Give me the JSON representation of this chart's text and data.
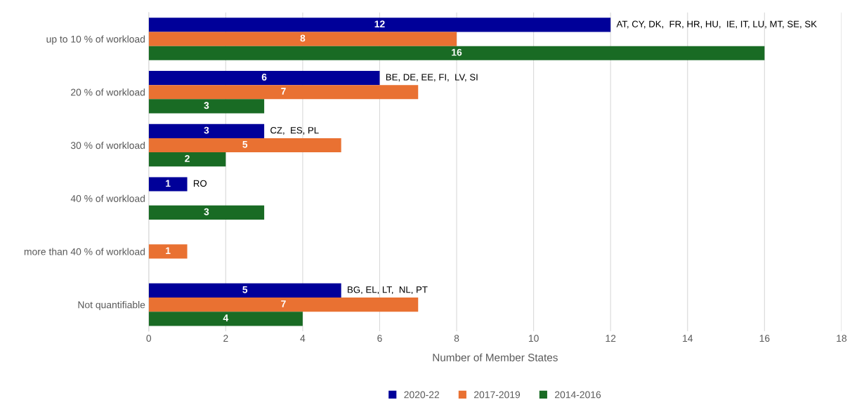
{
  "chart_data": {
    "type": "bar",
    "orientation": "horizontal",
    "xlabel": "Number of Member States",
    "categories": [
      "up to 10 % of workload",
      "20 % of workload",
      "30 % of workload",
      "40 % of workload",
      "more than 40 % of workload",
      "Not quantifiable"
    ],
    "series": [
      {
        "name": "2020-22",
        "color": "#000099",
        "values": [
          12,
          6,
          3,
          1,
          null,
          5
        ]
      },
      {
        "name": "2017-2019",
        "color": "#e97132",
        "values": [
          8,
          7,
          5,
          null,
          1,
          7
        ]
      },
      {
        "name": "2014-2016",
        "color": "#196b24",
        "values": [
          16,
          3,
          2,
          3,
          null,
          4
        ]
      }
    ],
    "xlim": [
      0,
      18
    ],
    "xticks": [
      0,
      2,
      4,
      6,
      8,
      10,
      12,
      14,
      16,
      18
    ],
    "grid": "x",
    "legend": "bottom",
    "data_labels": true,
    "annotations": [
      "AT, CY, DK,  FR, HR, HU,  IE, IT, LU, MT, SE, SK",
      "BE, DE, EE, FI,  LV, SI",
      "CZ,  ES, PL",
      "RO",
      "BG, EL, LT,  NL, PT"
    ]
  }
}
